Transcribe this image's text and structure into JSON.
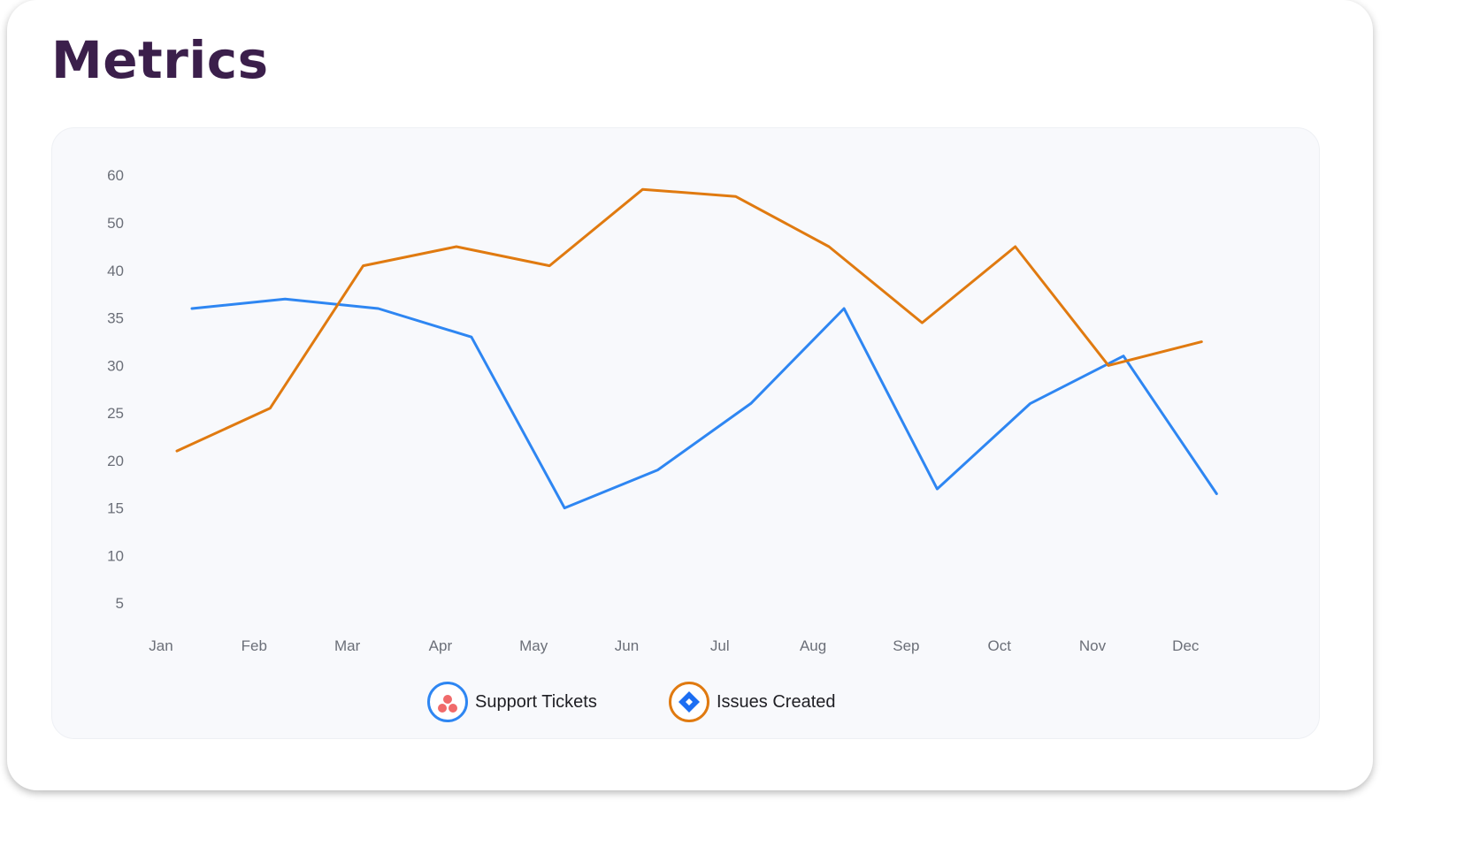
{
  "header": {
    "title": "Metrics"
  },
  "chart_data": {
    "type": "line",
    "categories": [
      "Jan",
      "Feb",
      "Mar",
      "Apr",
      "May",
      "Jun",
      "Jul",
      "Aug",
      "Sep",
      "Oct",
      "Nov",
      "Dec"
    ],
    "y_ticks": [
      "60",
      "50",
      "40",
      "35",
      "30",
      "25",
      "20",
      "15",
      "10",
      "5"
    ],
    "series": [
      {
        "name": "Support Tickets",
        "color": "#2e86f2",
        "values": [
          36,
          37,
          36,
          33,
          15,
          19,
          26,
          36,
          17,
          26,
          31,
          16.5
        ]
      },
      {
        "name": "Issues Created",
        "color": "#e07a10",
        "values": [
          21,
          25.5,
          41,
          45,
          41,
          57,
          55.5,
          45,
          34.5,
          45,
          30,
          32.5
        ]
      }
    ],
    "grid": false,
    "legend": "bottom-center"
  },
  "legend": [
    {
      "label": "Support Tickets",
      "icon": "asana-icon",
      "ring_color": "#2e86f2"
    },
    {
      "label": "Issues Created",
      "icon": "jira-icon",
      "ring_color": "#e07a10"
    }
  ]
}
